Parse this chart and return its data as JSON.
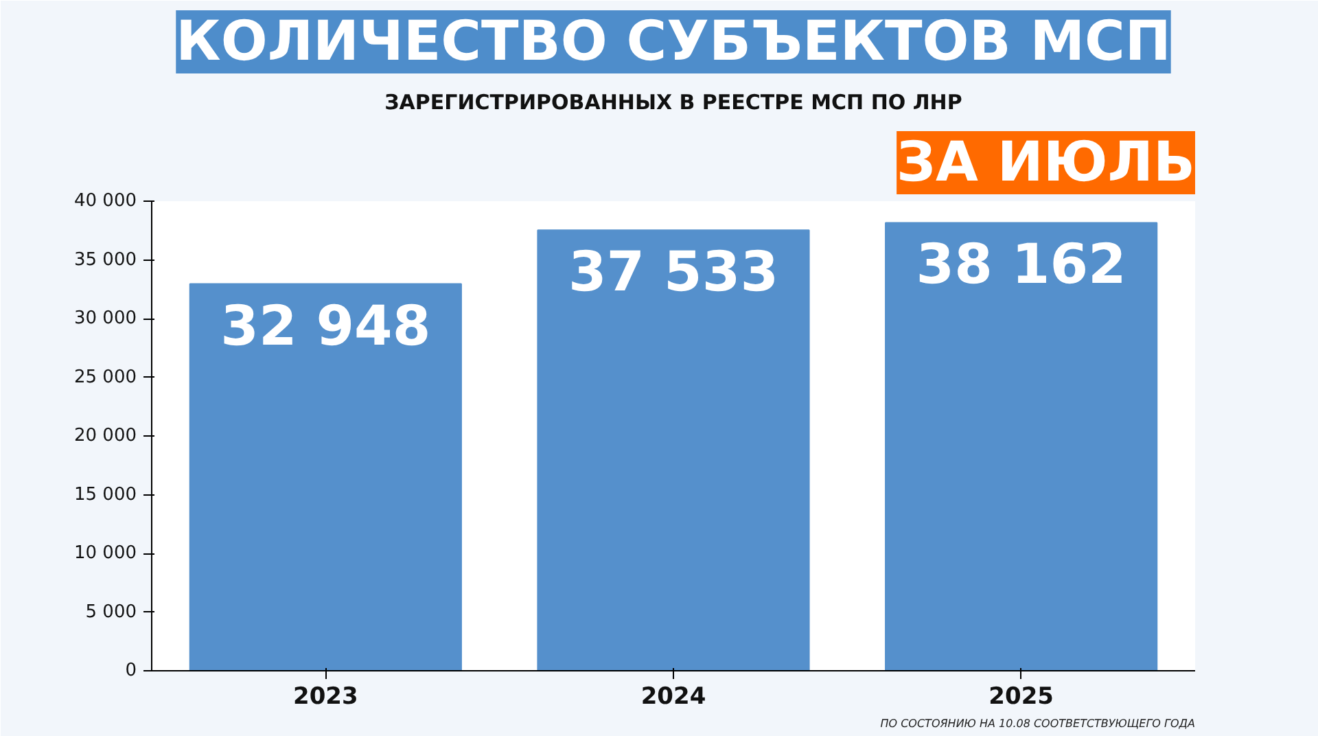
{
  "chart_data": {
    "type": "bar",
    "title": "КОЛИЧЕСТВО СУБЪЕКТОВ МСП",
    "subtitle": "ЗАРЕГИСТРИРОВАННЫХ В РЕЕСТРЕ МСП ПО ЛНР",
    "annotations": [
      "ЗА ИЮЛЬ",
      "ПО СОСТОЯНИЮ НА 10.08 СООТВЕТСТВУЮЩЕГО ГОДА"
    ],
    "categories": [
      "2023",
      "2024",
      "2025"
    ],
    "values": [
      32948,
      37533,
      38162
    ],
    "color": "#5590cc",
    "value_labels": [
      "32 948",
      "37 533",
      "38 162"
    ],
    "ylim": [
      0,
      40000
    ],
    "yticks": [
      {
        "value": 0,
        "label": "0"
      },
      {
        "value": 5000,
        "label": "5 000"
      },
      {
        "value": 10000,
        "label": "10 000"
      },
      {
        "value": 15000,
        "label": "15 000"
      },
      {
        "value": 20000,
        "label": "20 000"
      },
      {
        "value": 25000,
        "label": "25 000"
      },
      {
        "value": 30000,
        "label": "30 000"
      },
      {
        "value": 35000,
        "label": "35 000"
      },
      {
        "value": 40000,
        "label": "40 000"
      }
    ],
    "grid": false
  }
}
